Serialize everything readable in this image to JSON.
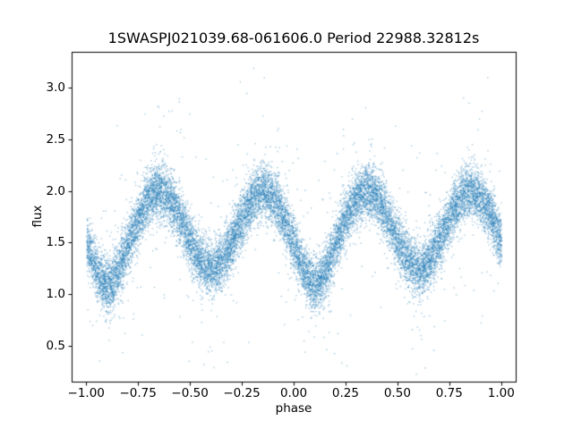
{
  "figure": {
    "background": "#ffffff"
  },
  "chart_data": {
    "type": "scatter",
    "title": "1SWASPJ021039.68-061606.0 Period 22988.32812s",
    "xlabel": "phase",
    "ylabel": "flux",
    "xlim": [
      -1.07,
      1.07
    ],
    "ylim": [
      0.155,
      3.345
    ],
    "xticks": [
      -1.0,
      -0.75,
      -0.5,
      -0.25,
      0.0,
      0.25,
      0.5,
      0.75,
      1.0
    ],
    "xtick_labels": [
      "−1.00",
      "−0.75",
      "−0.50",
      "−0.25",
      "0.00",
      "0.25",
      "0.50",
      "0.75",
      "1.00"
    ],
    "yticks": [
      0.5,
      1.0,
      1.5,
      2.0,
      2.5,
      3.0
    ],
    "ytick_labels": [
      "0.5",
      "1.0",
      "1.5",
      "2.0",
      "2.5",
      "3.0"
    ],
    "grid": false,
    "legend": null,
    "point_color": "#1f77b4",
    "point_alpha": 0.4,
    "point_size": 1.4,
    "n_points": 18000,
    "seed": 42,
    "model": {
      "description": "Phase-folded W-UMa-type eclipsing-binary light curve shown over two cycles (phase -1 to 1). Mean flux follows mean_flux + amplitude*cos(4*pi*(phase - max_phase)), with deeper primary eclipses (gaussian extra dips) centred at the primary_minimum_phases. Points have gaussian scatter noise_sigma with an outlier halo.",
      "mean_flux": 1.63,
      "amplitude": 0.37,
      "max_phase": 0.35,
      "maxima_phases": [
        -0.65,
        -0.15,
        0.35,
        0.85
      ],
      "maxima_flux": 2.0,
      "secondary_minima_phases": [
        -0.4,
        0.6
      ],
      "secondary_minima_flux": 1.26,
      "primary_minimum_phases": [
        -0.9,
        0.1
      ],
      "primary_minimum_flux": 1.1,
      "primary_extra_depth": 0.16,
      "primary_width": 0.055,
      "noise_sigma": 0.13,
      "outlier_fraction": 0.035,
      "outlier_sigma": 0.5,
      "flux_max_observed": 3.2,
      "flux_min_observed": 0.3
    }
  }
}
